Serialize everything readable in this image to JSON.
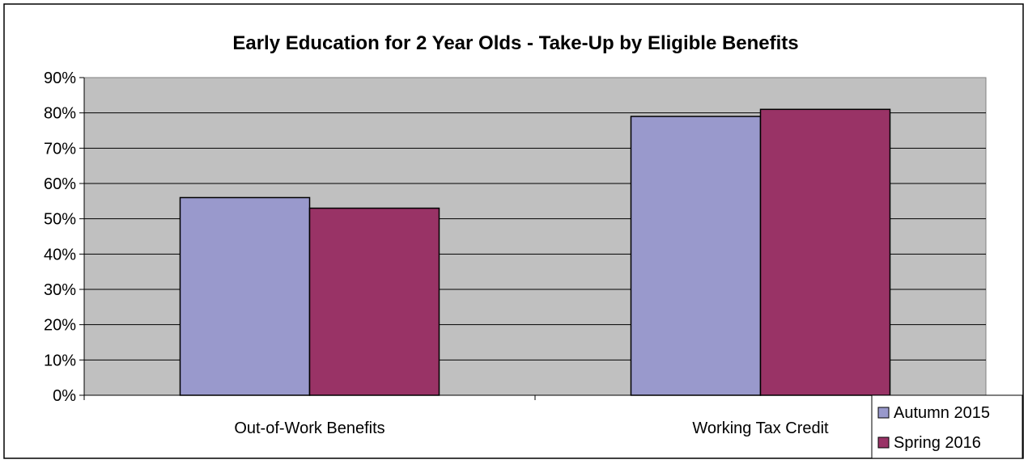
{
  "chart_data": {
    "type": "bar",
    "title": "Early Education for 2 Year Olds - Take-Up by Eligible Benefits",
    "categories": [
      "Out-of-Work Benefits",
      "Working Tax Credit"
    ],
    "series": [
      {
        "name": "Autumn 2015",
        "values": [
          56,
          79
        ],
        "color": "#9999cc"
      },
      {
        "name": "Spring 2016",
        "values": [
          53,
          81
        ],
        "color": "#993366"
      }
    ],
    "y_ticks": [
      "0%",
      "10%",
      "20%",
      "30%",
      "40%",
      "50%",
      "60%",
      "70%",
      "80%",
      "90%"
    ],
    "ylim": [
      0,
      90
    ],
    "y_unit": "%",
    "grid": true,
    "plot_background": "#c0c0c0",
    "legend_position": "bottom-right"
  }
}
